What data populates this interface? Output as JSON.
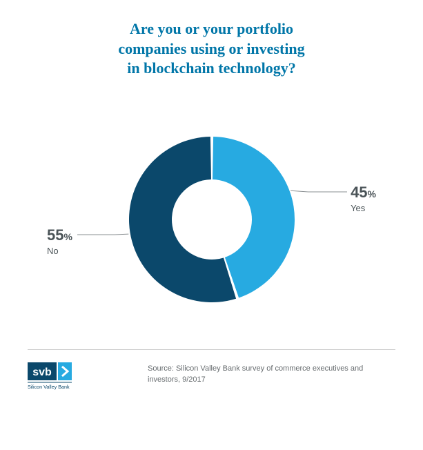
{
  "title_lines": [
    "Are you or your portfolio",
    "companies using or investing",
    "in blockchain technology?"
  ],
  "title_color": "#0076a8",
  "title_fontsize": 22,
  "chart": {
    "type": "donut",
    "series": [
      {
        "label": "Yes",
        "value": 45,
        "color": "#27aae1"
      },
      {
        "label": "No",
        "value": 55,
        "color": "#0b486b"
      }
    ],
    "start_angle_deg": 0,
    "outer_radius": 120,
    "inner_radius": 58,
    "gap_deg": 2,
    "background_color": "#ffffff",
    "pct_fontsize": 22,
    "pct_symbol_fontsize": 14,
    "label_fontsize": 13,
    "label_color": "#4a5357",
    "leader_color": "#8a8f92"
  },
  "source_text": "Source: Silicon Valley Bank survey of commerce executives and investors, 9/2017",
  "logo": {
    "text": "svb",
    "subtext": "Silicon Valley Bank",
    "box_color": "#0b486b",
    "chevron_color": "#27aae1"
  }
}
